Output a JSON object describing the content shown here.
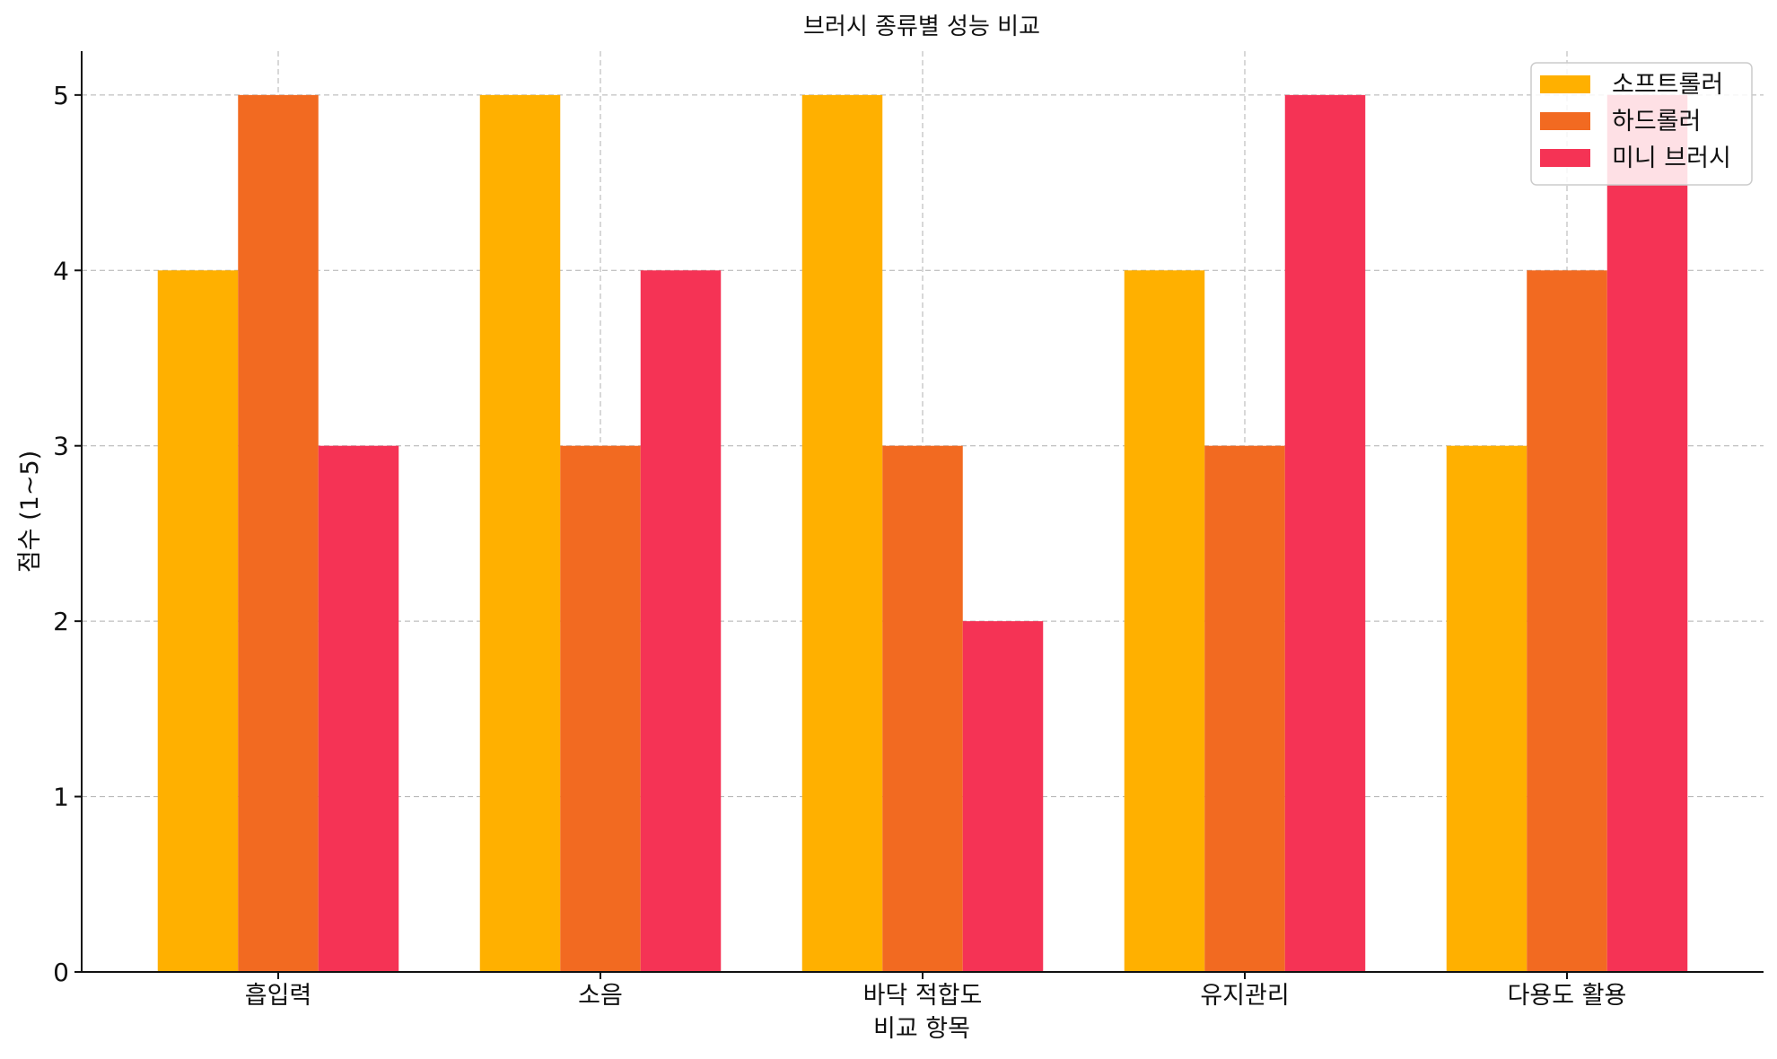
{
  "chart_data": {
    "type": "bar",
    "title": "브러시 종류별 성능 비교",
    "xlabel": "비교 항목",
    "ylabel": "점수 (1~5)",
    "categories": [
      "흡입력",
      "소음",
      "바닥 적합도",
      "유지관리",
      "다용도 활용"
    ],
    "series": [
      {
        "name": "소프트롤러",
        "color": "#FFB000",
        "values": [
          4,
          5,
          5,
          4,
          3
        ]
      },
      {
        "name": "하드롤러",
        "color": "#F26A21",
        "values": [
          5,
          3,
          3,
          3,
          4
        ]
      },
      {
        "name": "미니 브러시",
        "color": "#F53355",
        "values": [
          3,
          4,
          2,
          5,
          5
        ]
      }
    ],
    "ylim": [
      0,
      5.25
    ],
    "yticks": [
      0,
      1,
      2,
      3,
      4,
      5
    ],
    "grid": true,
    "legend_position": "top-right"
  }
}
